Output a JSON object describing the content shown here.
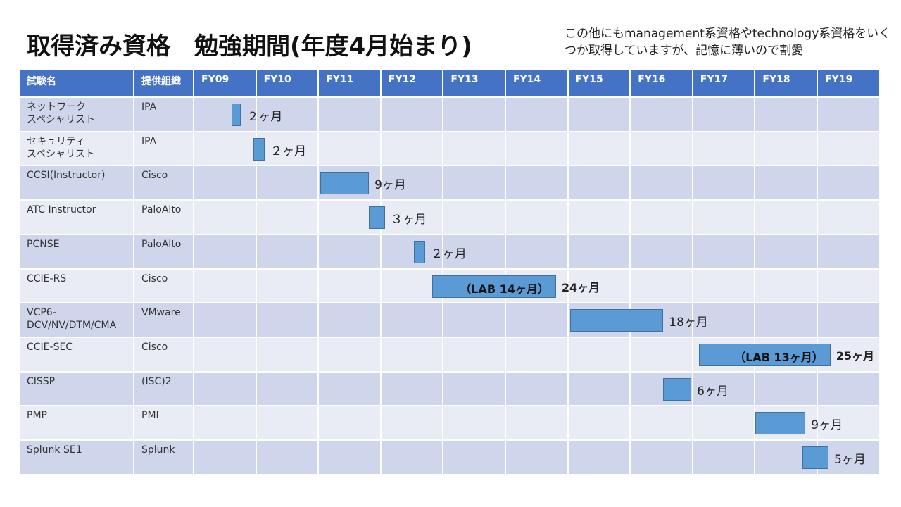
{
  "title": "取得済み資格　勉強期間(年度4月始まり)",
  "note": "この他にもmanagement系資格やtechnology系資格をいくつか取得していますが、記憶に薄いので割愛",
  "table": {
    "header_name": "試験名",
    "header_org": "提供組織"
  },
  "colors": {
    "header": "#4472c4",
    "row_dark": "#cfd5ea",
    "row_light": "#e9ebf5",
    "bar": "#5b9bd5"
  },
  "chart_data": {
    "type": "gantt",
    "x_categories": [
      "FY09",
      "FY10",
      "FY11",
      "FY12",
      "FY13",
      "FY14",
      "FY15",
      "FY16",
      "FY17",
      "FY18",
      "FY19"
    ],
    "rows": [
      {
        "name": "ネットワーク\nスペシャリスト",
        "org": "IPA",
        "start": 0.6,
        "end": 0.75,
        "duration_label": "２ヶ月"
      },
      {
        "name": "セキュリティ\nスペシャリスト",
        "org": "IPA",
        "start": 0.95,
        "end": 1.13,
        "duration_label": "２ヶ月"
      },
      {
        "name": "CCSI(Instructor)",
        "org": "Cisco",
        "start": 2.02,
        "end": 2.8,
        "duration_label": "9ヶ月"
      },
      {
        "name": "ATC Instructor",
        "org": "PaloAlto",
        "start": 2.8,
        "end": 3.06,
        "duration_label": "３ヶ月"
      },
      {
        "name": "PCNSE",
        "org": "PaloAlto",
        "start": 3.52,
        "end": 3.7,
        "duration_label": "２ヶ月"
      },
      {
        "name": "CCIE-RS",
        "org": "Cisco",
        "start": 3.81,
        "end": 5.8,
        "duration_label": "24ヶ月",
        "inner_label": "（LAB 14ヶ月）",
        "bold": true
      },
      {
        "name": "VCP6-\nDCV/NV/DTM/CMA",
        "org": "VMware",
        "start": 6.03,
        "end": 7.52,
        "duration_label": "18ヶ月"
      },
      {
        "name": "CCIE-SEC",
        "org": "Cisco",
        "start": 8.09,
        "end": 10.2,
        "duration_label": "25ヶ月",
        "inner_label": "（LAB 13ヶ月）",
        "bold": true
      },
      {
        "name": "CISSP",
        "org": "(ISC)2",
        "start": 7.52,
        "end": 7.97,
        "duration_label": "6ヶ月"
      },
      {
        "name": "PMP",
        "org": "PMI",
        "start": 9.0,
        "end": 9.8,
        "duration_label": "9ヶ月"
      },
      {
        "name": "Splunk SE1",
        "org": "Splunk",
        "start": 9.75,
        "end": 10.17,
        "duration_label": "5ヶ月"
      }
    ]
  }
}
